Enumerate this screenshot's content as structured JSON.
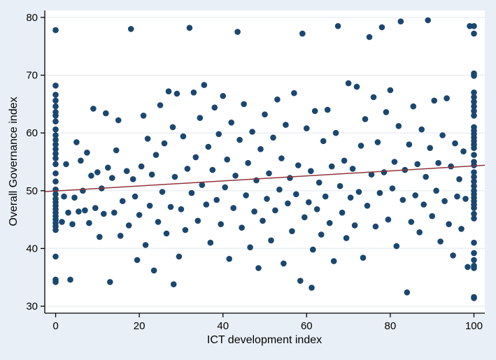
{
  "chart_data": {
    "type": "scatter",
    "title": "",
    "xlabel": "ICT development index",
    "ylabel": "Overall Governance index",
    "xlim": [
      0,
      100
    ],
    "ylim": [
      30,
      80
    ],
    "xticks": [
      0,
      20,
      40,
      60,
      80,
      100
    ],
    "yticks": [
      30,
      40,
      50,
      60,
      70,
      80
    ],
    "x_domain": [
      -2.6,
      102.6
    ],
    "y_domain": [
      28.8,
      81.2
    ],
    "grid": "horizontal",
    "legend": "none",
    "fit_line": {
      "slope": 0.0435,
      "intercept": 49.95
    },
    "colors": {
      "marker": "#1a476f",
      "fit_line": "#90353b",
      "background": "#e9eff6",
      "plot_bg": "#ffffff",
      "grid": "#e9edf3",
      "axis": "#000000"
    },
    "marker_radius": 4.3,
    "points": [
      [
        0,
        77.8
      ],
      [
        0,
        68.2
      ],
      [
        0,
        66.6
      ],
      [
        0,
        65.6
      ],
      [
        0,
        64.6
      ],
      [
        0,
        63.6
      ],
      [
        0,
        63.0
      ],
      [
        0,
        62.0
      ],
      [
        0,
        60.6
      ],
      [
        0,
        59.6
      ],
      [
        0,
        58.8
      ],
      [
        0,
        58.0
      ],
      [
        0,
        57.2
      ],
      [
        0,
        56.4
      ],
      [
        0,
        55.6
      ],
      [
        0,
        54.6
      ],
      [
        0,
        53.0
      ],
      [
        0,
        51.6
      ],
      [
        0,
        50.2
      ],
      [
        0,
        49.4
      ],
      [
        0,
        48.6
      ],
      [
        0,
        48.0
      ],
      [
        0,
        47.4
      ],
      [
        0,
        46.8
      ],
      [
        0,
        46.2
      ],
      [
        0,
        45.6
      ],
      [
        0,
        45.0
      ],
      [
        0,
        44.4
      ],
      [
        0,
        43.8
      ],
      [
        0,
        43.2
      ],
      [
        0,
        38.6
      ],
      [
        0,
        34.6
      ],
      [
        0,
        34.2
      ],
      [
        1.5,
        44.6
      ],
      [
        2,
        49.0
      ],
      [
        2.5,
        54.6
      ],
      [
        3,
        46.2
      ],
      [
        3.5,
        34.6
      ],
      [
        4,
        44.2
      ],
      [
        4.5,
        48.8
      ],
      [
        5,
        58.4
      ],
      [
        5.5,
        46.4
      ],
      [
        6,
        55.2
      ],
      [
        6.5,
        50.0
      ],
      [
        7,
        46.6
      ],
      [
        7.5,
        56.6
      ],
      [
        8,
        44.4
      ],
      [
        8.5,
        52.6
      ],
      [
        9,
        64.2
      ],
      [
        9.5,
        47.0
      ],
      [
        10,
        53.2
      ],
      [
        10.5,
        42.0
      ],
      [
        11,
        50.4
      ],
      [
        11.5,
        46.0
      ],
      [
        12,
        63.4
      ],
      [
        12.5,
        54.0
      ],
      [
        13,
        34.2
      ],
      [
        13.5,
        52.2
      ],
      [
        14,
        46.2
      ],
      [
        14.5,
        57.0
      ],
      [
        15,
        62.2
      ],
      [
        15.5,
        42.2
      ],
      [
        16,
        48.2
      ],
      [
        17,
        53.4
      ],
      [
        17.5,
        44.0
      ],
      [
        18,
        78.0
      ],
      [
        18.5,
        52.0
      ],
      [
        19,
        49.0
      ],
      [
        19.5,
        38.0
      ],
      [
        20,
        45.8
      ],
      [
        20.5,
        54.2
      ],
      [
        21,
        63.0
      ],
      [
        21.5,
        40.6
      ],
      [
        22,
        59.0
      ],
      [
        22.5,
        47.4
      ],
      [
        23,
        52.8
      ],
      [
        23.5,
        36.2
      ],
      [
        24,
        56.2
      ],
      [
        24.5,
        44.6
      ],
      [
        25,
        64.8
      ],
      [
        25.5,
        49.8
      ],
      [
        26,
        58.2
      ],
      [
        26.5,
        42.6
      ],
      [
        27,
        67.2
      ],
      [
        27.5,
        47.2
      ],
      [
        28,
        61.0
      ],
      [
        28.2,
        33.8
      ],
      [
        28.5,
        52.4
      ],
      [
        29,
        66.8
      ],
      [
        29.5,
        38.6
      ],
      [
        30,
        46.8
      ],
      [
        30.5,
        59.4
      ],
      [
        31,
        43.2
      ],
      [
        31.5,
        53.8
      ],
      [
        32,
        78.2
      ],
      [
        32.5,
        49.6
      ],
      [
        33,
        67.0
      ],
      [
        33.5,
        55.8
      ],
      [
        34,
        44.8
      ],
      [
        34.5,
        62.6
      ],
      [
        35,
        51.0
      ],
      [
        35.5,
        68.3
      ],
      [
        36,
        47.6
      ],
      [
        36.5,
        57.6
      ],
      [
        37,
        41.0
      ],
      [
        37.5,
        53.6
      ],
      [
        38,
        64.4
      ],
      [
        38.5,
        48.4
      ],
      [
        39,
        59.8
      ],
      [
        39.5,
        44.2
      ],
      [
        40,
        66.4
      ],
      [
        40.5,
        50.6
      ],
      [
        41,
        55.4
      ],
      [
        41.5,
        38.2
      ],
      [
        42,
        61.8
      ],
      [
        42.5,
        47.0
      ],
      [
        43,
        52.6
      ],
      [
        43.5,
        77.5
      ],
      [
        44,
        58.8
      ],
      [
        44.5,
        43.6
      ],
      [
        45,
        65.0
      ],
      [
        45.5,
        49.2
      ],
      [
        46,
        54.8
      ],
      [
        46.5,
        40.2
      ],
      [
        47,
        60.2
      ],
      [
        47.5,
        46.4
      ],
      [
        48,
        51.8
      ],
      [
        48.5,
        36.6
      ],
      [
        49,
        57.2
      ],
      [
        49.5,
        44.8
      ],
      [
        50,
        63.2
      ],
      [
        50.5,
        48.6
      ],
      [
        51,
        53.0
      ],
      [
        51.5,
        41.4
      ],
      [
        52,
        59.2
      ],
      [
        52.5,
        46.6
      ],
      [
        53,
        65.8
      ],
      [
        53.5,
        50.2
      ],
      [
        54,
        55.6
      ],
      [
        54.5,
        37.4
      ],
      [
        55,
        61.4
      ],
      [
        55.5,
        47.8
      ],
      [
        56,
        52.2
      ],
      [
        56.5,
        43.0
      ],
      [
        57,
        66.9
      ],
      [
        57.5,
        49.4
      ],
      [
        58,
        54.4
      ],
      [
        58.5,
        34.4
      ],
      [
        59,
        77.2
      ],
      [
        59.5,
        45.4
      ],
      [
        60,
        60.8
      ],
      [
        60.5,
        48.0
      ],
      [
        61,
        53.4
      ],
      [
        61.2,
        33.2
      ],
      [
        61.5,
        39.8
      ],
      [
        62,
        63.8
      ],
      [
        62.5,
        46.8
      ],
      [
        63,
        51.4
      ],
      [
        63.5,
        42.4
      ],
      [
        64,
        58.6
      ],
      [
        64.5,
        49.0
      ],
      [
        65,
        64.0
      ],
      [
        65.5,
        44.4
      ],
      [
        66,
        54.2
      ],
      [
        66.5,
        37.8
      ],
      [
        67,
        60.0
      ],
      [
        67.5,
        78.5
      ],
      [
        68,
        50.8
      ],
      [
        68.5,
        46.2
      ],
      [
        69,
        55.2
      ],
      [
        69.5,
        41.8
      ],
      [
        70,
        68.6
      ],
      [
        70.5,
        48.8
      ],
      [
        71,
        53.8
      ],
      [
        71.5,
        44.0
      ],
      [
        72,
        68.0
      ],
      [
        72.5,
        49.8
      ],
      [
        73,
        57.8
      ],
      [
        73.5,
        38.4
      ],
      [
        74,
        62.4
      ],
      [
        74.5,
        47.4
      ],
      [
        75,
        76.6
      ],
      [
        75.5,
        52.8
      ],
      [
        76,
        66.2
      ],
      [
        76.5,
        43.8
      ],
      [
        77,
        58.4
      ],
      [
        77.5,
        49.6
      ],
      [
        78,
        78.3
      ],
      [
        78.5,
        53.2
      ],
      [
        79,
        63.6
      ],
      [
        79.5,
        45.0
      ],
      [
        80,
        67.4
      ],
      [
        80.5,
        50.4
      ],
      [
        81,
        55.0
      ],
      [
        81.5,
        40.4
      ],
      [
        82,
        61.2
      ],
      [
        82.5,
        79.3
      ],
      [
        83,
        48.4
      ],
      [
        83.5,
        53.6
      ],
      [
        84,
        32.4
      ],
      [
        84.5,
        58.0
      ],
      [
        85,
        44.6
      ],
      [
        85.5,
        64.6
      ],
      [
        86,
        49.2
      ],
      [
        86.5,
        54.6
      ],
      [
        87,
        42.8
      ],
      [
        87.5,
        60.6
      ],
      [
        88,
        47.6
      ],
      [
        88.5,
        52.4
      ],
      [
        89,
        79.5
      ],
      [
        89.5,
        57.4
      ],
      [
        90,
        45.6
      ],
      [
        90.5,
        65.6
      ],
      [
        91,
        50.0
      ],
      [
        91.5,
        54.8
      ],
      [
        92,
        41.2
      ],
      [
        92.5,
        59.6
      ],
      [
        93,
        48.2
      ],
      [
        93.5,
        66.0
      ],
      [
        94,
        44.2
      ],
      [
        94.5,
        54.2
      ],
      [
        95,
        38.8
      ],
      [
        95.5,
        58.2
      ],
      [
        96,
        49.0
      ],
      [
        96.5,
        52.0
      ],
      [
        97,
        43.4
      ],
      [
        97.5,
        56.8
      ],
      [
        98,
        48.6
      ],
      [
        98.5,
        36.8
      ],
      [
        99,
        78.5
      ],
      [
        100,
        78.5
      ],
      [
        100,
        77.2
      ],
      [
        100,
        70.3
      ],
      [
        100,
        69.9
      ],
      [
        100,
        67.0
      ],
      [
        100,
        66.2
      ],
      [
        100,
        65.4
      ],
      [
        100,
        64.6
      ],
      [
        100,
        63.8
      ],
      [
        100,
        63.0
      ],
      [
        100,
        61.0
      ],
      [
        100,
        60.4
      ],
      [
        100,
        59.8
      ],
      [
        100,
        59.2
      ],
      [
        100,
        58.6
      ],
      [
        100,
        58.0
      ],
      [
        100,
        57.4
      ],
      [
        100,
        56.2
      ],
      [
        100,
        55.0
      ],
      [
        100,
        54.4
      ],
      [
        100,
        53.2
      ],
      [
        100,
        52.4
      ],
      [
        100,
        51.6
      ],
      [
        100,
        50.8
      ],
      [
        100,
        50.0
      ],
      [
        100,
        49.4
      ],
      [
        100,
        48.8
      ],
      [
        100,
        48.2
      ],
      [
        100,
        47.6
      ],
      [
        100,
        47.0
      ],
      [
        100,
        46.0
      ],
      [
        100,
        45.2
      ],
      [
        100,
        41.0
      ],
      [
        100,
        39.2
      ],
      [
        100,
        38.0
      ],
      [
        100,
        37.0
      ],
      [
        100,
        36.6
      ],
      [
        100,
        31.6
      ],
      [
        100,
        31.4
      ]
    ]
  }
}
